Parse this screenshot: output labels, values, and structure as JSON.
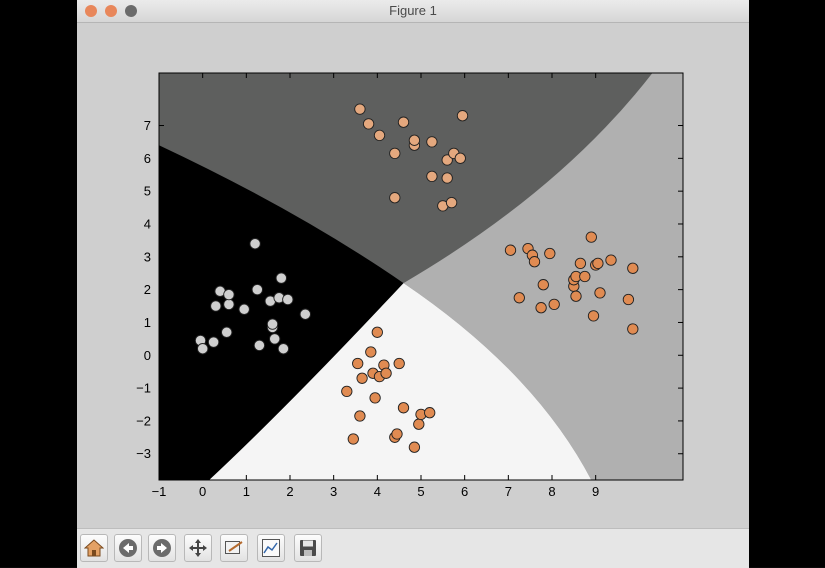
{
  "window": {
    "title": "Figure 1"
  },
  "toolbar": {
    "buttons": [
      {
        "name": "home",
        "icon": "home-icon"
      },
      {
        "name": "back",
        "icon": "back-arrow-icon"
      },
      {
        "name": "forward",
        "icon": "forward-arrow-icon"
      },
      {
        "name": "pan",
        "icon": "pan-arrows-icon"
      },
      {
        "name": "zoom",
        "icon": "zoom-rectangle-icon"
      },
      {
        "name": "subplots",
        "icon": "subplots-configure-icon"
      },
      {
        "name": "save",
        "icon": "floppy-disk-save-icon"
      }
    ]
  },
  "chart_data": {
    "type": "scatter",
    "title": "",
    "xlabel": "",
    "ylabel": "",
    "xlim": [
      -1,
      11
    ],
    "ylim": [
      -3.8,
      8.6
    ],
    "xticks": [
      -1,
      0,
      1,
      2,
      3,
      4,
      5,
      6,
      7,
      8,
      9
    ],
    "yticks": [
      -3,
      -2,
      -1,
      0,
      1,
      2,
      3,
      4,
      5,
      6,
      7
    ],
    "grid": false,
    "decision_regions": [
      {
        "class": "top",
        "color": "#5e5f5e"
      },
      {
        "class": "left",
        "color": "#000000"
      },
      {
        "class": "right",
        "color": "#b0b0b0"
      },
      {
        "class": "bottom",
        "color": "#f5f5f5"
      }
    ],
    "series": [
      {
        "color": "#cfcfcf",
        "points": [
          [
            -0.05,
            0.45
          ],
          [
            0,
            0.2
          ],
          [
            0.25,
            0.4
          ],
          [
            0.3,
            1.5
          ],
          [
            0.4,
            1.95
          ],
          [
            0.55,
            0.7
          ],
          [
            0.6,
            1.55
          ],
          [
            0.6,
            1.85
          ],
          [
            0.95,
            1.4
          ],
          [
            1.2,
            3.4
          ],
          [
            1.25,
            2.0
          ],
          [
            1.3,
            0.3
          ],
          [
            1.55,
            1.65
          ],
          [
            1.6,
            0.85
          ],
          [
            1.6,
            0.95
          ],
          [
            1.65,
            0.5
          ],
          [
            1.75,
            1.75
          ],
          [
            1.8,
            2.35
          ],
          [
            1.85,
            0.2
          ],
          [
            1.95,
            1.7
          ],
          [
            2.35,
            1.25
          ]
        ]
      },
      {
        "color": "#e4a87e",
        "points": [
          [
            3.6,
            7.5
          ],
          [
            3.8,
            7.05
          ],
          [
            4.05,
            6.7
          ],
          [
            4.4,
            6.15
          ],
          [
            4.4,
            4.8
          ],
          [
            4.6,
            7.1
          ],
          [
            4.85,
            6.4
          ],
          [
            4.85,
            6.55
          ],
          [
            5.25,
            6.5
          ],
          [
            5.25,
            5.45
          ],
          [
            5.5,
            4.55
          ],
          [
            5.6,
            5.95
          ],
          [
            5.6,
            5.4
          ],
          [
            5.7,
            4.65
          ],
          [
            5.75,
            6.15
          ],
          [
            5.9,
            6.0
          ],
          [
            5.95,
            7.3
          ]
        ]
      },
      {
        "color": "#e08b52",
        "points": [
          [
            7.05,
            3.2
          ],
          [
            7.25,
            1.75
          ],
          [
            7.45,
            3.25
          ],
          [
            7.55,
            3.05
          ],
          [
            7.6,
            2.85
          ],
          [
            7.75,
            1.45
          ],
          [
            7.8,
            2.15
          ],
          [
            7.95,
            3.1
          ],
          [
            8.05,
            1.55
          ],
          [
            8.5,
            2.1
          ],
          [
            8.5,
            2.3
          ],
          [
            8.55,
            1.8
          ],
          [
            8.55,
            2.4
          ],
          [
            8.65,
            2.8
          ],
          [
            8.75,
            2.4
          ],
          [
            8.9,
            3.6
          ],
          [
            8.95,
            1.2
          ],
          [
            9.0,
            2.75
          ],
          [
            9.05,
            2.8
          ],
          [
            9.1,
            1.9
          ],
          [
            9.35,
            2.9
          ],
          [
            9.75,
            1.7
          ],
          [
            9.85,
            2.65
          ],
          [
            9.85,
            0.8
          ]
        ]
      },
      {
        "color": "#e08b52",
        "points": [
          [
            3.3,
            -1.1
          ],
          [
            3.45,
            -2.55
          ],
          [
            3.55,
            -0.25
          ],
          [
            3.6,
            -1.85
          ],
          [
            3.65,
            -0.7
          ],
          [
            3.85,
            0.1
          ],
          [
            3.9,
            -0.55
          ],
          [
            3.95,
            -1.3
          ],
          [
            4.0,
            0.7
          ],
          [
            4.05,
            -0.65
          ],
          [
            4.15,
            -0.3
          ],
          [
            4.2,
            -0.55
          ],
          [
            4.4,
            -2.5
          ],
          [
            4.5,
            -0.25
          ],
          [
            4.45,
            -2.4
          ],
          [
            4.6,
            -1.6
          ],
          [
            4.85,
            -2.8
          ],
          [
            4.95,
            -2.1
          ],
          [
            5.0,
            -1.8
          ],
          [
            5.2,
            -1.75
          ]
        ]
      }
    ]
  }
}
